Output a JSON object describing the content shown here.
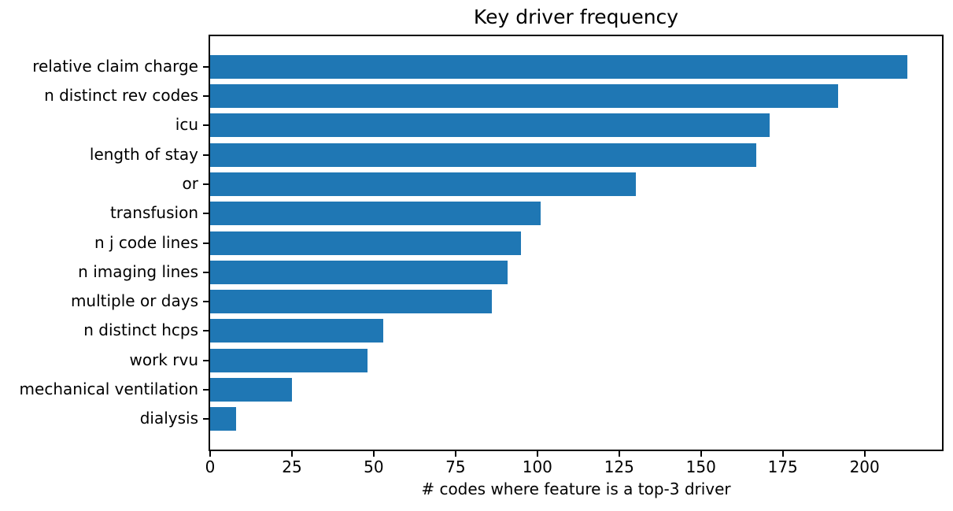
{
  "chart_data": {
    "type": "bar",
    "orientation": "horizontal",
    "title": "Key driver frequency",
    "xlabel": "# codes where feature is a top-3 driver",
    "ylabel": "",
    "categories": [
      "relative claim charge",
      "n distinct rev codes",
      "icu",
      "length of stay",
      "or",
      "transfusion",
      "n j code lines",
      "n imaging lines",
      "multiple or days",
      "n distinct hcps",
      "work rvu",
      "mechanical ventilation",
      "dialysis"
    ],
    "values": [
      213,
      192,
      171,
      167,
      130,
      101,
      95,
      91,
      86,
      53,
      48,
      25,
      8
    ],
    "xticks": [
      0,
      25,
      50,
      75,
      100,
      125,
      150,
      175,
      200
    ],
    "xlim": [
      0,
      223.65
    ],
    "bar_color": "#1f77b4",
    "grid": false,
    "legend": null
  }
}
